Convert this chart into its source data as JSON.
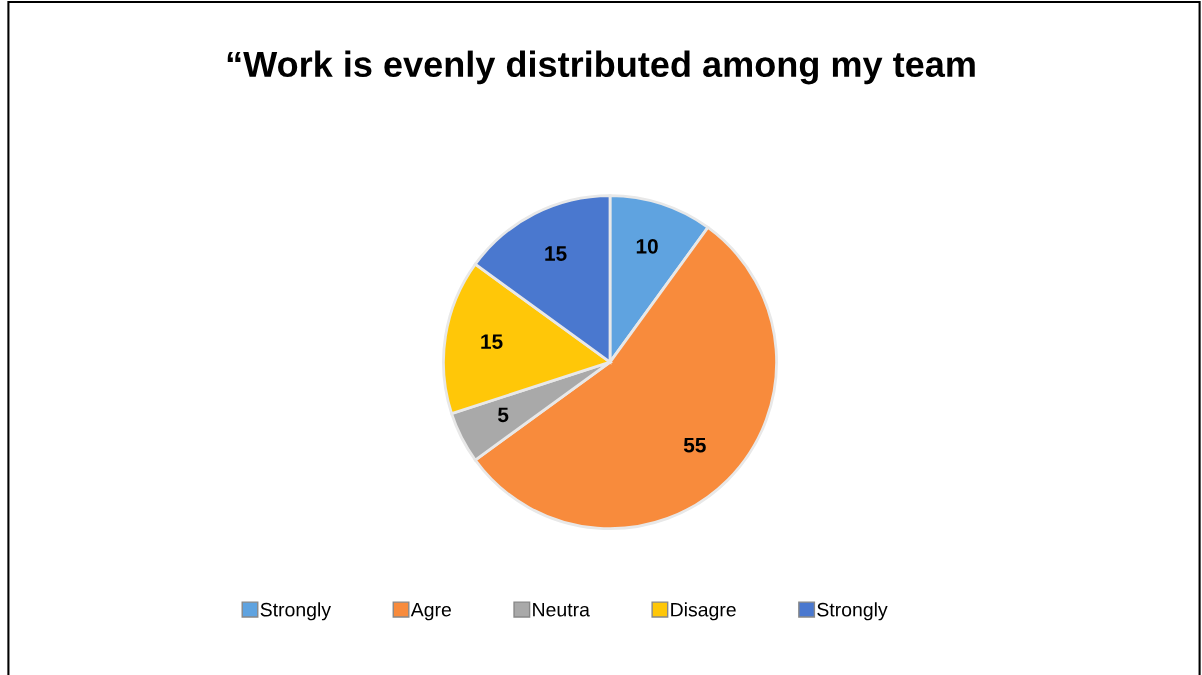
{
  "chart_data": {
    "type": "pie",
    "title": "“Work is evenly distributed among my team",
    "categories": [
      "Strongly",
      "Agre",
      "Neutra",
      "Disagre",
      "Strongly"
    ],
    "values": [
      10,
      55,
      5,
      15,
      15
    ],
    "colors": [
      "#5fa3e0",
      "#f88b3c",
      "#a9a9a9",
      "#ffc708",
      "#4a78cf"
    ],
    "data_labels": true,
    "legend": "bottom"
  }
}
